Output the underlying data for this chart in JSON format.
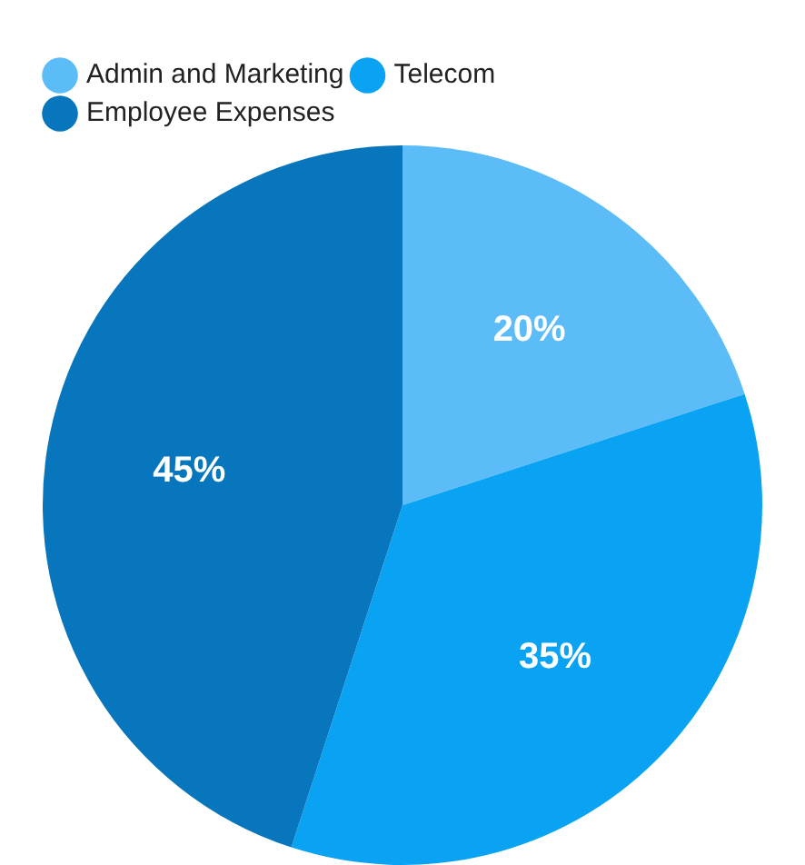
{
  "chart_data": {
    "type": "pie",
    "categories": [
      "Admin and Marketing",
      "Telecom",
      "Employee Expenses"
    ],
    "values": [
      20,
      35,
      45
    ],
    "colors": [
      "#5bbcf8",
      "#0aa2f2",
      "#0876bd"
    ],
    "legend": "top left",
    "value_labels": [
      "20%",
      "35%",
      "45%"
    ]
  }
}
